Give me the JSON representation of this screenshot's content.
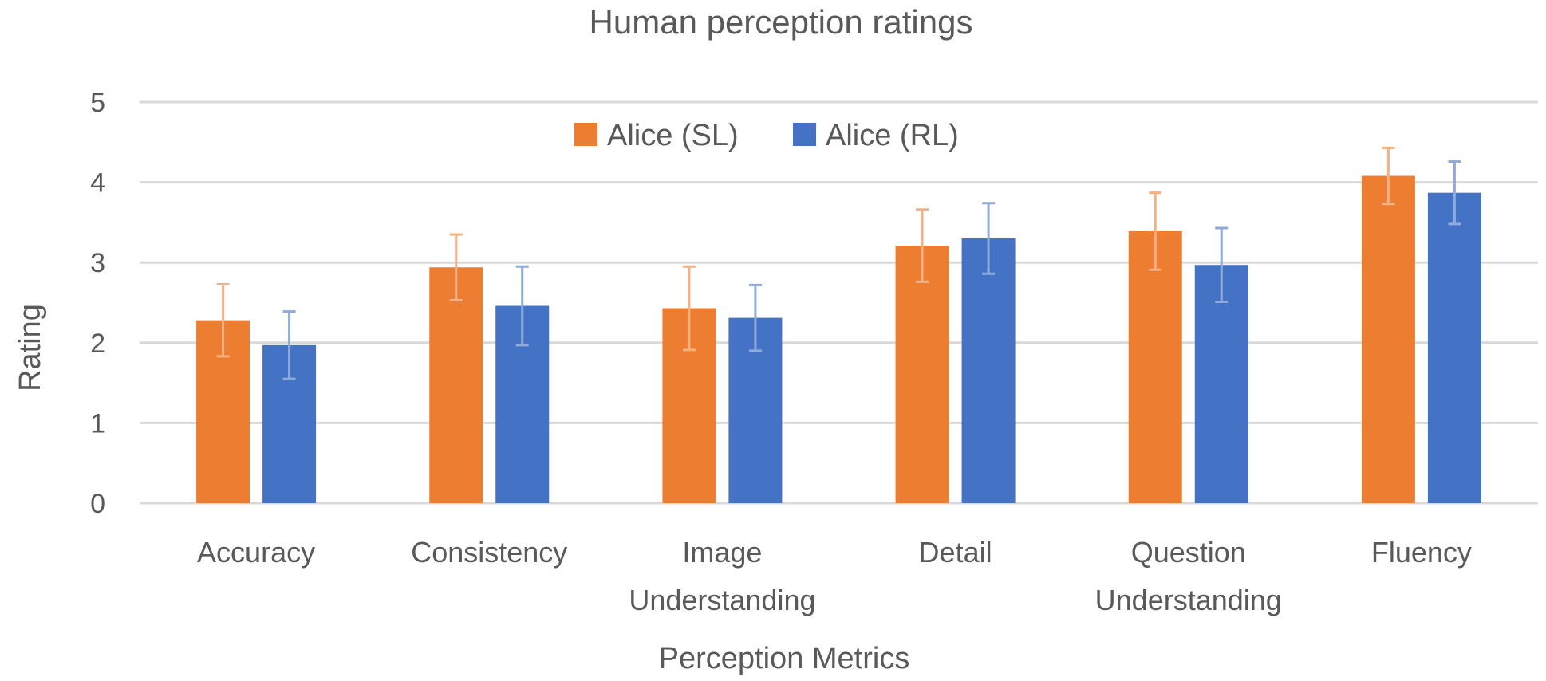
{
  "chart_data": {
    "type": "bar",
    "title": "Human perception ratings",
    "xlabel": "Perception Metrics",
    "ylabel": "Rating",
    "ylim": [
      0,
      5
    ],
    "yticks": [
      "0",
      "1",
      "2",
      "3",
      "4",
      "5"
    ],
    "grid": true,
    "legend_position": "top-center",
    "categories": [
      [
        "Accuracy"
      ],
      [
        "Consistency"
      ],
      [
        "Image",
        "Understanding"
      ],
      [
        "Detail"
      ],
      [
        "Question",
        "Understanding"
      ],
      [
        "Fluency"
      ]
    ],
    "series": [
      {
        "name": "Alice (SL)",
        "color": "#ED7D31",
        "error_color": "#F4B183",
        "values": [
          2.28,
          2.94,
          2.43,
          3.21,
          3.39,
          4.08
        ],
        "errors": [
          0.45,
          0.41,
          0.52,
          0.45,
          0.48,
          0.35
        ]
      },
      {
        "name": "Alice (RL)",
        "color": "#4472C4",
        "error_color": "#8FAADC",
        "values": [
          1.97,
          2.46,
          2.31,
          3.3,
          2.97,
          3.87
        ],
        "errors": [
          0.42,
          0.49,
          0.41,
          0.44,
          0.46,
          0.39
        ]
      }
    ]
  }
}
